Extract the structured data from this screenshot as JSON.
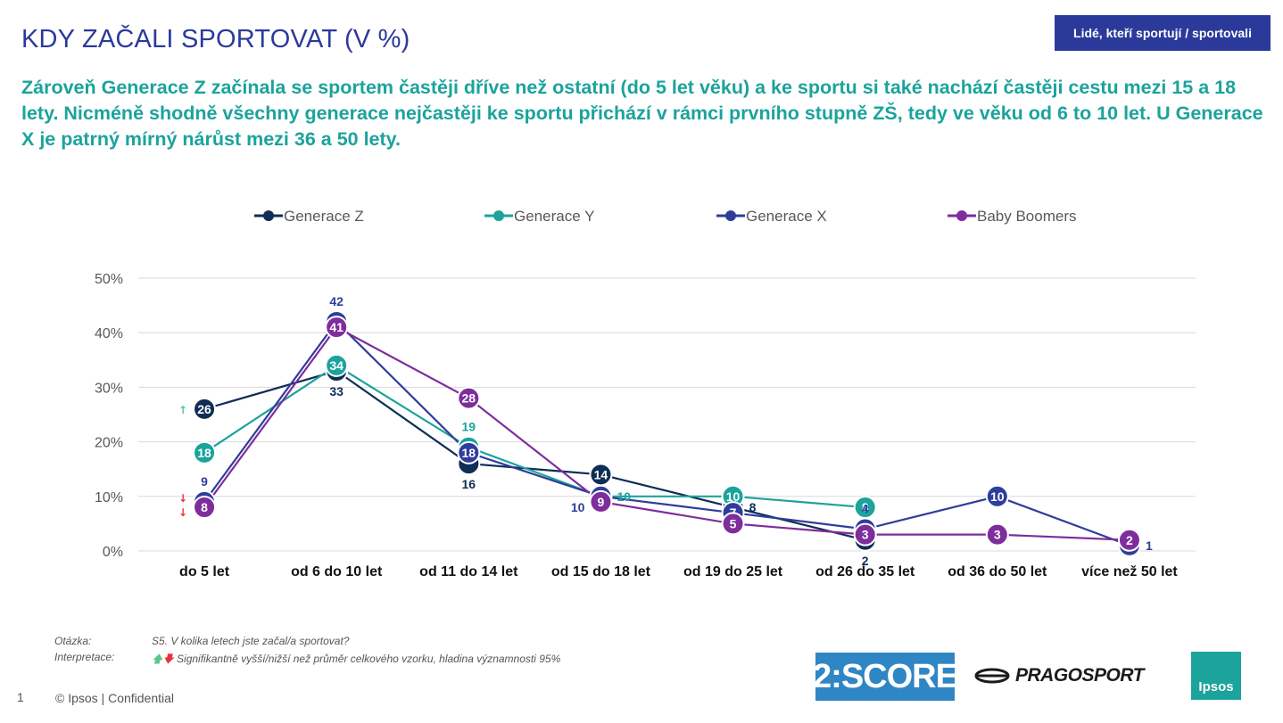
{
  "header": {
    "title": "KDY ZAČALI SPORTOVAT (V %)",
    "badge": "Lidé, kteří sportují / sportovali",
    "subtitle": "Zároveň Generace Z začínala se sportem častěji dříve než ostatní (do 5 let věku) a ke sportu si také nachází častěji cestu mezi 15 a 18 lety. Nicméně shodně všechny generace nejčastěji ke sportu přichází v rámci prvního stupně ZŠ, tedy ve věku od 6 to 10 let. U Generace X je patrný mírný nárůst mezi 36 a 50 lety."
  },
  "chart_data": {
    "type": "line",
    "categories": [
      "do 5 let",
      "od 6 do 10 let",
      "od 11 do 14 let",
      "od 15 do 18 let",
      "od 19 do 25 let",
      "od 26 do 35 let",
      "od 36 do 50 let",
      "více než 50 let"
    ],
    "ylim": [
      0,
      50
    ],
    "yticks": [
      0,
      10,
      20,
      30,
      40,
      50
    ],
    "ytick_labels": [
      "0%",
      "10%",
      "20%",
      "30%",
      "40%",
      "50%"
    ],
    "grid": true,
    "legend_position": "top",
    "series": [
      {
        "name": "Generace Z",
        "color": "#0f2d55",
        "values": [
          26,
          33,
          16,
          14,
          8,
          2,
          null,
          null
        ],
        "labels": [
          "26",
          "33",
          "16",
          "14",
          "8",
          "2",
          null,
          null
        ],
        "label_style": [
          "in",
          "below",
          "below",
          "in",
          "right",
          "below",
          null,
          null
        ]
      },
      {
        "name": "Generace Y",
        "color": "#1ba39c",
        "values": [
          18,
          34,
          19,
          10,
          10,
          8,
          null,
          null
        ],
        "labels": [
          "18",
          "34",
          "19",
          "10",
          "10",
          "8",
          null,
          null
        ],
        "label_style": [
          "in",
          "in",
          "above",
          "right",
          "in",
          "in",
          null,
          null
        ]
      },
      {
        "name": "Generace X",
        "color": "#2f3d9b",
        "values": [
          9,
          42,
          18,
          10,
          7,
          4,
          10,
          1
        ],
        "labels": [
          "9",
          "42",
          "18",
          "10",
          "7",
          "4",
          "10",
          "1"
        ],
        "label_style": [
          "above",
          "above",
          "in",
          "left",
          "in",
          "above",
          "in",
          "right"
        ]
      },
      {
        "name": "Baby Boomers",
        "color": "#7e2d9c",
        "values": [
          8,
          41,
          28,
          9,
          5,
          3,
          3,
          2
        ],
        "labels": [
          "8",
          "41",
          "28",
          "9",
          "5",
          "3",
          "3",
          "2"
        ],
        "label_style": [
          "in",
          "in",
          "in",
          "in",
          "in",
          "in",
          "in",
          "in"
        ]
      }
    ],
    "significance": [
      {
        "category": "do 5 let",
        "symbol": "↑",
        "meaning": "higher",
        "series": "Generace Z"
      },
      {
        "category": "do 5 let",
        "symbol": "↓",
        "meaning": "lower",
        "series": "Generace X"
      },
      {
        "category": "do 5 let",
        "symbol": "↓",
        "meaning": "lower",
        "series": "Baby Boomers"
      }
    ]
  },
  "notes": {
    "question_label": "Otázka:",
    "question_text": "S5. V kolika letech jste začal/a sportovat?",
    "interpretation_label": "Interpretace:",
    "interpretation_arrows_up": "🡅",
    "interpretation_arrows_down": "🡇",
    "interpretation_text": "Signifikantně vyšší/nižší než průměr celkového vzorku, hladina významnosti 95%"
  },
  "footer": {
    "page_number": "1",
    "copyright": "© Ipsos | Confidential",
    "logo_2score": "2:SCORE",
    "logo_pragosport": "PRAGOSPORT",
    "logo_ipsos": "Ipsos"
  }
}
